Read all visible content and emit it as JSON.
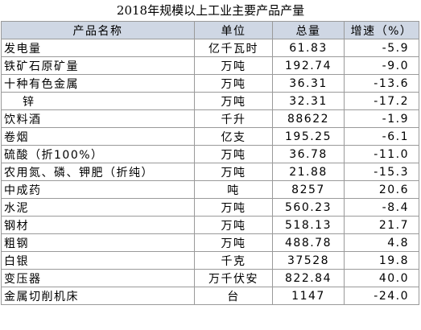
{
  "title": "2018年规模以上工业主要产品产量",
  "headers": {
    "name": "产品名称",
    "unit": "单位",
    "total": "总量",
    "growth": "增速（%）"
  },
  "rows": [
    {
      "name": "发电量",
      "unit": "亿千瓦时",
      "total": "61.83",
      "growth": "-5.9",
      "indent": false
    },
    {
      "name": "铁矿石原矿量",
      "unit": "万吨",
      "total": "192.74",
      "growth": "-9.0",
      "indent": false
    },
    {
      "name": "十种有色金属",
      "unit": "万吨",
      "total": "36.31",
      "growth": "-13.6",
      "indent": false
    },
    {
      "name": "锌",
      "unit": "万吨",
      "total": "32.31",
      "growth": "-17.2",
      "indent": true
    },
    {
      "name": "饮料酒",
      "unit": "千升",
      "total": "88622",
      "growth": "-1.9",
      "indent": false
    },
    {
      "name": "卷烟",
      "unit": "亿支",
      "total": "195.25",
      "growth": "-6.1",
      "indent": false
    },
    {
      "name": "硫酸（折100%）",
      "unit": "万吨",
      "total": "36.78",
      "growth": "-11.0",
      "indent": false
    },
    {
      "name": "农用氮、磷、钾肥（折纯）",
      "unit": "万吨",
      "total": "21.88",
      "growth": "-15.3",
      "indent": false
    },
    {
      "name": "中成药",
      "unit": "吨",
      "total": "8257",
      "growth": "20.6",
      "indent": false
    },
    {
      "name": "水泥",
      "unit": "万吨",
      "total": "560.23",
      "growth": "-8.4",
      "indent": false
    },
    {
      "name": "钢材",
      "unit": "万吨",
      "total": "518.13",
      "growth": "21.7",
      "indent": false
    },
    {
      "name": "粗钢",
      "unit": "万吨",
      "total": "488.78",
      "growth": "4.8",
      "indent": false
    },
    {
      "name": "白银",
      "unit": "千克",
      "total": "37528",
      "growth": "19.8",
      "indent": false
    },
    {
      "name": "变压器",
      "unit": "万千伏安",
      "total": "822.84",
      "growth": "40.0",
      "indent": false
    },
    {
      "name": "金属切削机床",
      "unit": "台",
      "total": "1147",
      "growth": "-24.0",
      "indent": false
    }
  ],
  "colors": {
    "header_bg": "#cfd7e4",
    "border": "#9a9a9a"
  }
}
